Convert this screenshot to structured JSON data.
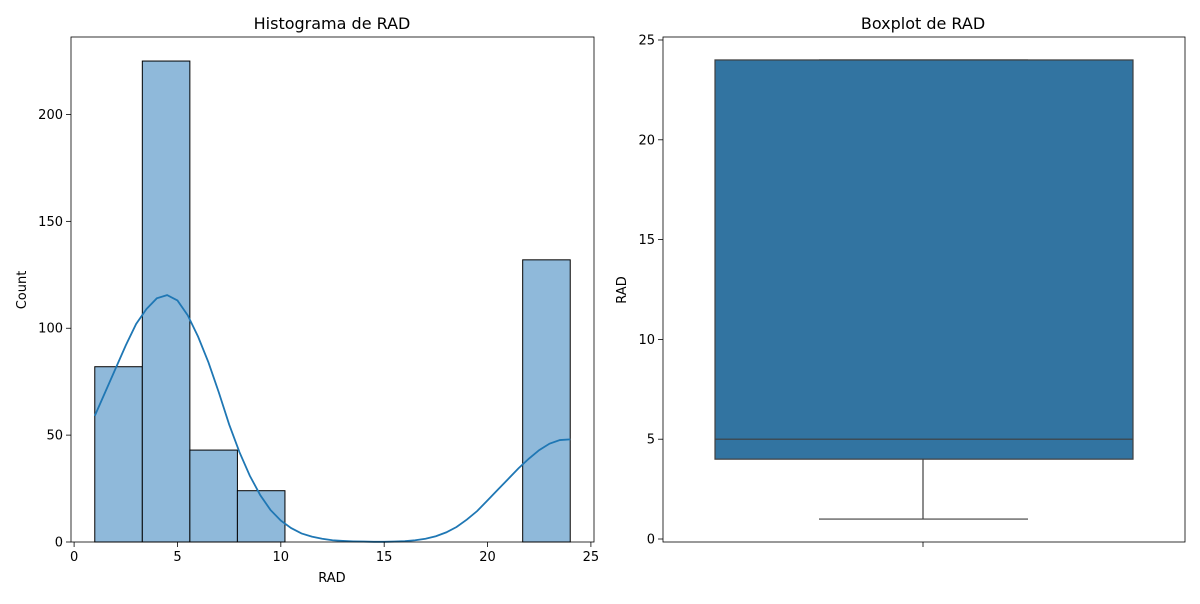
{
  "colors": {
    "hist_fill": "#8fb9da",
    "hist_edge": "#000000",
    "kde_line": "#1f77b4",
    "box_fill": "#3274a1",
    "box_edge": "#3f3f3f"
  },
  "chart_data": [
    {
      "type": "bar",
      "subtype": "histogram-with-kde",
      "title": "Histograma de RAD",
      "xlabel": "RAD",
      "ylabel": "Count",
      "xlim": [
        -0.15,
        25.15
      ],
      "ylim": [
        0,
        236.25
      ],
      "xticks": [
        0,
        5,
        10,
        15,
        20,
        25
      ],
      "yticks": [
        0,
        50,
        100,
        150,
        200
      ],
      "bins": [
        {
          "x0": 1.0,
          "x1": 3.3,
          "count": 82
        },
        {
          "x0": 3.3,
          "x1": 5.6,
          "count": 225
        },
        {
          "x0": 5.6,
          "x1": 7.9,
          "count": 43
        },
        {
          "x0": 7.9,
          "x1": 10.2,
          "count": 24
        },
        {
          "x0": 10.2,
          "x1": 12.5,
          "count": 0
        },
        {
          "x0": 12.5,
          "x1": 14.8,
          "count": 0
        },
        {
          "x0": 14.8,
          "x1": 17.1,
          "count": 0
        },
        {
          "x0": 17.1,
          "x1": 19.4,
          "count": 0
        },
        {
          "x0": 19.4,
          "x1": 21.7,
          "count": 0
        },
        {
          "x0": 21.7,
          "x1": 24.0,
          "count": 132
        }
      ],
      "kde": {
        "x": [
          1,
          1.5,
          2,
          2.5,
          3,
          3.5,
          4,
          4.5,
          5,
          5.5,
          6,
          6.5,
          7,
          7.5,
          8,
          8.5,
          9,
          9.5,
          10,
          10.5,
          11,
          11.5,
          12,
          12.5,
          13,
          13.5,
          14,
          14.5,
          15,
          15.5,
          16,
          16.5,
          17,
          17.5,
          18,
          18.5,
          19,
          19.5,
          20,
          20.5,
          21,
          21.5,
          22,
          22.5,
          23,
          23.5,
          24
        ],
        "y": [
          59,
          70,
          81,
          92,
          102,
          109,
          114,
          115.5,
          113,
          106,
          96,
          84,
          70,
          55,
          42,
          31,
          22,
          15,
          10,
          6.5,
          4,
          2.5,
          1.5,
          0.8,
          0.5,
          0.3,
          0.2,
          0.1,
          0.1,
          0.2,
          0.4,
          0.8,
          1.5,
          2.7,
          4.5,
          7,
          10.5,
          14.5,
          19.5,
          24.5,
          29.5,
          34.5,
          39,
          43,
          46,
          47.7,
          48
        ]
      }
    },
    {
      "type": "boxplot",
      "title": "Boxplot de RAD",
      "ylabel": "RAD",
      "ylim": [
        -0.15,
        25.15
      ],
      "yticks": [
        0,
        5,
        10,
        15,
        20,
        25
      ],
      "stats": {
        "min": 1,
        "q1": 4,
        "median": 5,
        "q3": 24,
        "max": 24
      }
    }
  ]
}
